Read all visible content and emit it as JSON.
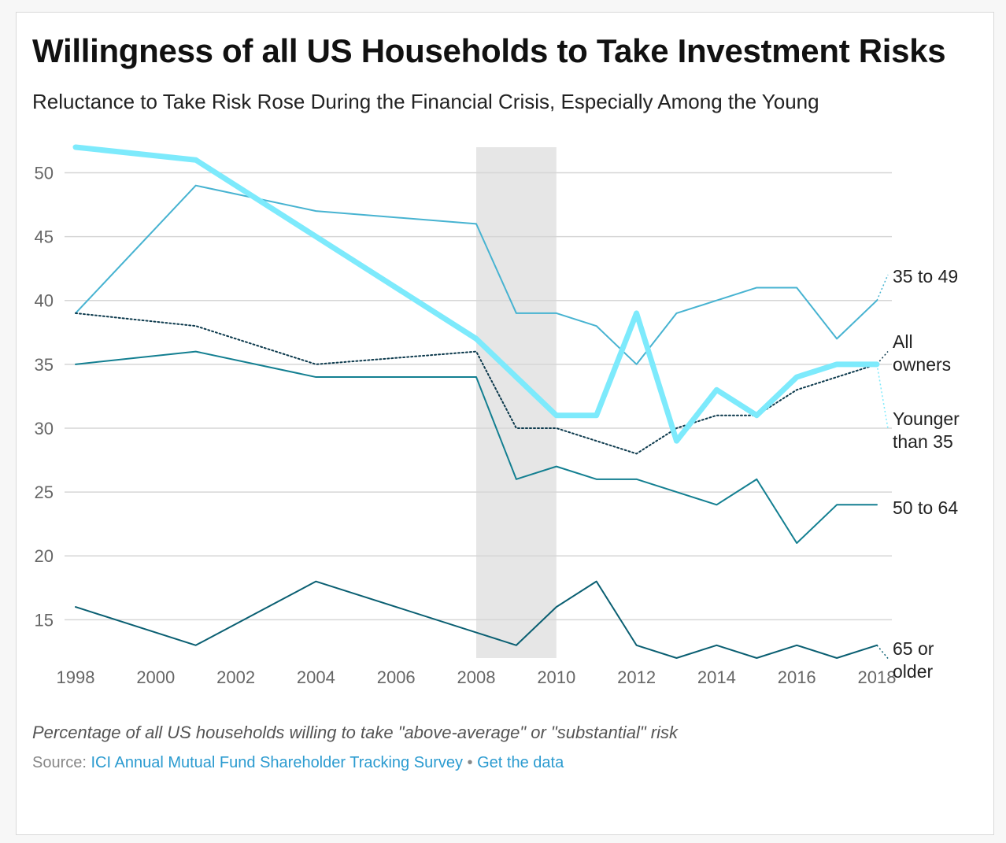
{
  "title": "Willingness of all US Households to Take Investment Risks",
  "subtitle": "Reluctance to Take Risk Rose During the Financial Crisis, Especially Among the Young",
  "footer": {
    "note": "Percentage of all US households willing to take \"above-average\" or \"substantial\" risk",
    "source_label": "Source:",
    "source_name": "ICI Annual Mutual Fund Shareholder Tracking Survey",
    "separator": "•",
    "get_data": "Get the data"
  },
  "chart_data": {
    "type": "line",
    "x": [
      1998,
      2001,
      2004,
      2008,
      2009,
      2010,
      2011,
      2012,
      2013,
      2014,
      2015,
      2016,
      2017,
      2018
    ],
    "x_ticks": [
      1998,
      2000,
      2002,
      2004,
      2006,
      2008,
      2010,
      2012,
      2014,
      2016,
      2018
    ],
    "y_ticks": [
      15,
      20,
      25,
      30,
      35,
      40,
      45,
      50
    ],
    "xlim": [
      1998,
      2018
    ],
    "ylim": [
      12,
      52
    ],
    "grid": true,
    "shaded_region": {
      "x_start": 2008,
      "x_end": 2010,
      "color": "#e6e6e6"
    },
    "series": [
      {
        "name": "Younger than 35",
        "label_lines": [
          "Younger",
          "than 35"
        ],
        "color": "#7deafc",
        "style": "thick",
        "values": [
          52,
          51,
          45,
          37,
          34,
          31,
          31,
          39,
          29,
          33,
          31,
          34,
          35,
          35
        ]
      },
      {
        "name": "35 to 49",
        "label_lines": [
          "35 to 49"
        ],
        "color": "#47b3d1",
        "style": "solid",
        "values": [
          39,
          49,
          47,
          46,
          39,
          39,
          38,
          35,
          39,
          40,
          41,
          41,
          37,
          40
        ]
      },
      {
        "name": "All owners",
        "label_lines": [
          "All",
          "owners"
        ],
        "color": "#0d3a4d",
        "style": "dotted",
        "values": [
          39,
          38,
          35,
          36,
          30,
          30,
          29,
          28,
          30,
          31,
          31,
          33,
          34,
          35
        ]
      },
      {
        "name": "50 to 64",
        "label_lines": [
          "50 to 64"
        ],
        "color": "#137f91",
        "style": "solid",
        "values": [
          35,
          36,
          34,
          34,
          26,
          27,
          26,
          26,
          25,
          24,
          26,
          21,
          24,
          24
        ]
      },
      {
        "name": "65 or older",
        "label_lines": [
          "65 or",
          "older"
        ],
        "color": "#0a5f72",
        "style": "solid",
        "values": [
          16,
          13,
          18,
          14,
          13,
          16,
          18,
          13,
          12,
          13,
          12,
          13,
          12,
          13
        ]
      }
    ]
  }
}
